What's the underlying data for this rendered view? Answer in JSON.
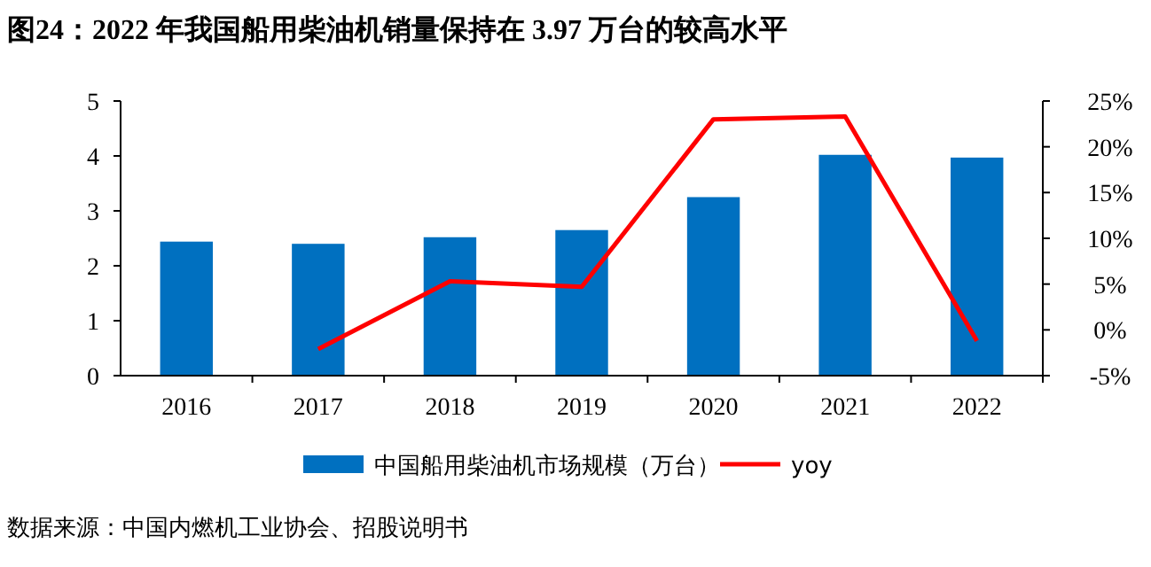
{
  "chart_data": {
    "type": "bar",
    "title": "图24：2022 年我国船用柴油机销量保持在 3.97 万台的较高水平",
    "categories": [
      "2016",
      "2017",
      "2018",
      "2019",
      "2020",
      "2021",
      "2022"
    ],
    "series": [
      {
        "name": "中国船用柴油机市场规模（万台）",
        "color": "#0070c0",
        "values": [
          2.44,
          2.4,
          2.52,
          2.65,
          3.25,
          4.02,
          3.97
        ]
      },
      {
        "name": "yoy",
        "type": "line",
        "axis": "y2",
        "color": "#ff0000",
        "values": [
          null,
          -2.1,
          5.3,
          4.7,
          23.0,
          23.3,
          -1.2
        ]
      }
    ],
    "ylim": [
      0,
      5
    ],
    "yticks": [
      0,
      1,
      2,
      3,
      4,
      5
    ],
    "y2lim": [
      -5,
      25
    ],
    "y2ticks": [
      {
        "value": -5,
        "label": "-5%"
      },
      {
        "value": 0,
        "label": "0%"
      },
      {
        "value": 5,
        "label": "5%"
      },
      {
        "value": 10,
        "label": "10%"
      },
      {
        "value": 15,
        "label": "15%"
      },
      {
        "value": 20,
        "label": "20%"
      },
      {
        "value": 25,
        "label": "25%"
      }
    ],
    "legend": "bottom",
    "grid": false,
    "annotations": [
      "数据来源：中国内燃机工业协会、招股说明书"
    ]
  }
}
